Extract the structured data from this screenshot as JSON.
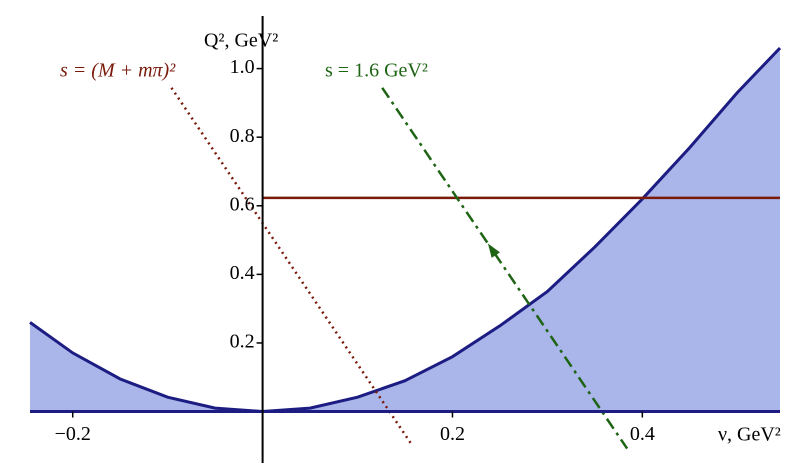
{
  "chart_data": {
    "type": "line",
    "xlabel": "ν, GeV²",
    "ylabel": "Q², GeV²",
    "xlim": [
      -0.245,
      0.545
    ],
    "ylim": [
      -0.15,
      1.2
    ],
    "xticks": [
      {
        "value": -0.2,
        "label": "−0.2"
      },
      0.2,
      0.4
    ],
    "yticks": [
      0.2,
      0.4,
      0.6,
      0.8,
      {
        "value": 1,
        "label": "1.0"
      }
    ],
    "annotations": [
      "s = (M + mπ)²",
      "s = 1.6 GeV²"
    ],
    "series": [
      {
        "color": "#1c1c82",
        "fill": "#aab6ea",
        "x": [
          -0.245,
          -0.2,
          -0.15,
          -0.1,
          -0.05,
          0,
          0.05,
          0.1,
          0.15,
          0.2,
          0.25,
          0.3,
          0.35,
          0.4,
          0.45,
          0.5,
          0.545
        ],
        "values": [
          0.26,
          0.171,
          0.095,
          0.042,
          0.01,
          0,
          0.01,
          0.042,
          0.09,
          0.16,
          0.25,
          0.35,
          0.48,
          0.62,
          0.77,
          0.93,
          1.06
        ]
      },
      {
        "color": "#7a1a0a",
        "style": "solid",
        "x": [
          0,
          0.545
        ],
        "values": [
          0.623,
          0.623
        ]
      },
      {
        "color": "#7a1a0a",
        "style": "dotted",
        "x": [
          -0.096,
          0.157
        ],
        "values": [
          0.944,
          -0.096
        ]
      },
      {
        "color": "#1e6414",
        "style": "dashdot",
        "x": [
          0.126,
          0.384
        ],
        "values": [
          0.944,
          -0.108
        ]
      }
    ]
  }
}
